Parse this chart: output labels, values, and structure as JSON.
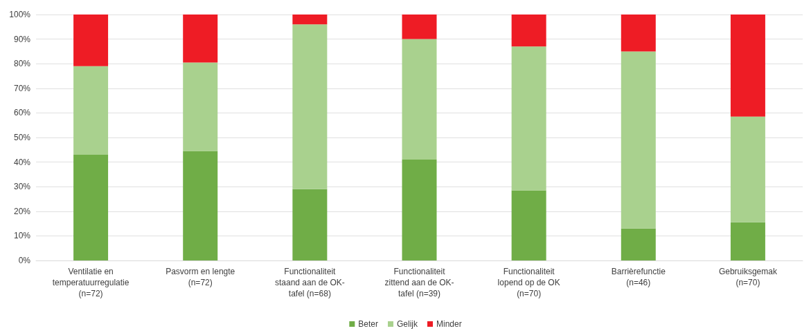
{
  "chart_data": {
    "type": "bar",
    "stacked": true,
    "categories": [
      "Ventilatie en\ntemperatuurregulatie\n(n=72)",
      "Pasvorm en lengte\n(n=72)",
      "Functionaliteit\nstaand aan de OK-\ntafel (n=68)",
      "Functionaliteit\nzittend aan de OK-\ntafel (n=39)",
      "Functionaliteit\nlopend op de OK\n(n=70)",
      "Barrièrefunctie\n(n=46)",
      "Gebruiksgemak\n(n=70)"
    ],
    "series": [
      {
        "name": "Beter",
        "color": "#70ad47",
        "values": [
          43,
          44.5,
          29,
          41,
          28.5,
          13,
          15.5
        ]
      },
      {
        "name": "Gelijk",
        "color": "#a9d18e",
        "values": [
          36,
          36,
          67,
          49,
          58.5,
          72,
          43
        ]
      },
      {
        "name": "Minder",
        "color": "#ee1c25",
        "values": [
          21,
          19.5,
          4,
          10,
          13,
          15,
          41.5
        ]
      }
    ],
    "ylim": [
      0,
      100
    ],
    "yticks": [
      {
        "value": 0,
        "label": "0%"
      },
      {
        "value": 10,
        "label": "10%"
      },
      {
        "value": 20,
        "label": "20%"
      },
      {
        "value": 30,
        "label": "30%"
      },
      {
        "value": 40,
        "label": "40%"
      },
      {
        "value": 50,
        "label": "50%"
      },
      {
        "value": 60,
        "label": "60%"
      },
      {
        "value": 70,
        "label": "70%"
      },
      {
        "value": 80,
        "label": "80%"
      },
      {
        "value": 90,
        "label": "90%"
      },
      {
        "value": 100,
        "label": "100%"
      }
    ],
    "grid": "y",
    "legend": "bottom"
  }
}
